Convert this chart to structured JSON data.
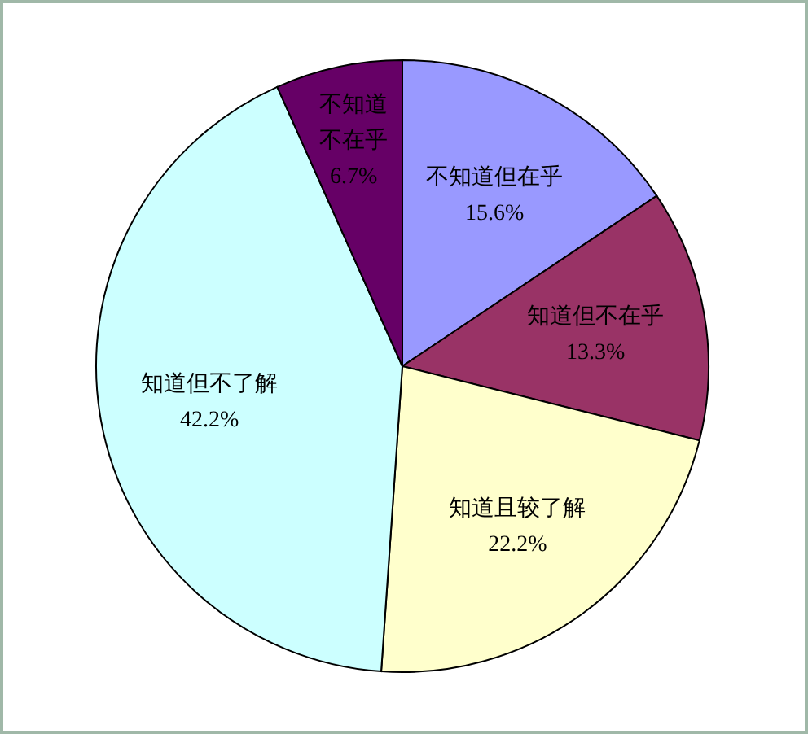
{
  "chart_data": {
    "type": "pie",
    "categories": [
      "不知道但在乎",
      "知道但不在乎",
      "知道且较了解",
      "知道但不了解",
      "不知道不在乎"
    ],
    "values": [
      15.6,
      13.3,
      22.2,
      42.2,
      6.7
    ],
    "value_labels": [
      "15.6%",
      "13.3%",
      "22.2%",
      "42.2%",
      "6.7%"
    ],
    "colors": [
      "#9999ff",
      "#993366",
      "#ffffcc",
      "#ccffff",
      "#660066"
    ]
  }
}
